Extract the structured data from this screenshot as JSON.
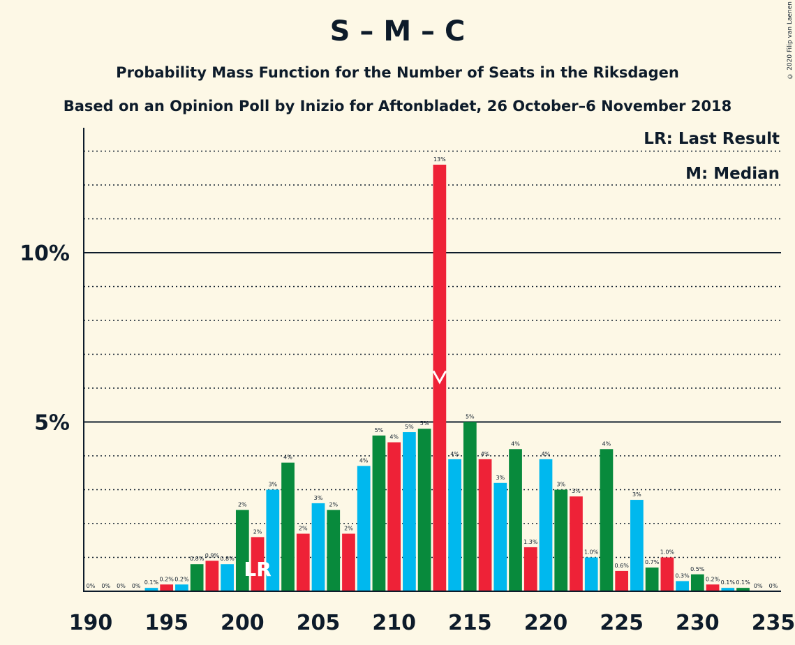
{
  "title": "S – M – C",
  "subtitle1": "Probability Mass Function for the Number of Seats in the Riksdagen",
  "subtitle2": "Based on an Opinion Poll by Inizio for Aftonbladet, 26 October–6 November 2018",
  "legend": {
    "lr": "LR: Last Result",
    "m": "M: Median"
  },
  "copyright": "© 2020 Filip van Laenen",
  "markers": {
    "last_result_label": "LR",
    "last_result_seat": 201,
    "median_seat": 213
  },
  "colors": {
    "green": "#088a3c",
    "red": "#ee2237",
    "blue": "#00b8ee",
    "background": "#fdf8e6",
    "text": "#0d1b2a"
  },
  "chart_data": {
    "type": "bar",
    "xlim": [
      190,
      235
    ],
    "ylim": [
      0,
      13.7
    ],
    "x_ticks": [
      "190",
      "195",
      "200",
      "205",
      "210",
      "215",
      "220",
      "225",
      "230",
      "235"
    ],
    "y_ticks": [
      {
        "value": 5,
        "label": "5%"
      },
      {
        "value": 10,
        "label": "10%"
      }
    ],
    "gridlines": "dotted every 1%, solid at 5% and 10%",
    "bars": [
      {
        "seat": 190,
        "value": 0,
        "label": "0%",
        "color": "green"
      },
      {
        "seat": 191,
        "value": 0,
        "label": "0%",
        "color": "red"
      },
      {
        "seat": 192,
        "value": 0,
        "label": "0%",
        "color": "blue"
      },
      {
        "seat": 193,
        "value": 0,
        "label": "0%",
        "color": "green"
      },
      {
        "seat": 194,
        "value": 0.1,
        "label": "0.1%",
        "color": "blue"
      },
      {
        "seat": 195,
        "value": 0.2,
        "label": "0.2%",
        "color": "red"
      },
      {
        "seat": 196,
        "value": 0.2,
        "label": "0.2%",
        "color": "blue"
      },
      {
        "seat": 197,
        "value": 0.8,
        "label": "0.8%",
        "color": "green"
      },
      {
        "seat": 198,
        "value": 0.9,
        "label": "0.9%",
        "color": "red"
      },
      {
        "seat": 199,
        "value": 0.8,
        "label": "0.8%",
        "color": "blue"
      },
      {
        "seat": 200,
        "value": 2.4,
        "label": "2%",
        "color": "green"
      },
      {
        "seat": 201,
        "value": 1.6,
        "label": "2%",
        "color": "red"
      },
      {
        "seat": 202,
        "value": 3.0,
        "label": "3%",
        "color": "blue"
      },
      {
        "seat": 203,
        "value": 3.8,
        "label": "4%",
        "color": "green"
      },
      {
        "seat": 204,
        "value": 1.7,
        "label": "2%",
        "color": "red"
      },
      {
        "seat": 205,
        "value": 2.6,
        "label": "3%",
        "color": "blue"
      },
      {
        "seat": 206,
        "value": 2.4,
        "label": "2%",
        "color": "green"
      },
      {
        "seat": 207,
        "value": 1.7,
        "label": "2%",
        "color": "red"
      },
      {
        "seat": 208,
        "value": 3.7,
        "label": "4%",
        "color": "blue"
      },
      {
        "seat": 209,
        "value": 4.6,
        "label": "5%",
        "color": "green"
      },
      {
        "seat": 210,
        "value": 4.4,
        "label": "4%",
        "color": "red"
      },
      {
        "seat": 211,
        "value": 4.7,
        "label": "5%",
        "color": "blue"
      },
      {
        "seat": 212,
        "value": 4.8,
        "label": "5%",
        "color": "green"
      },
      {
        "seat": 213,
        "value": 12.6,
        "label": "13%",
        "color": "red"
      },
      {
        "seat": 214,
        "value": 3.9,
        "label": "4%",
        "color": "blue"
      },
      {
        "seat": 215,
        "value": 5.0,
        "label": "5%",
        "color": "green"
      },
      {
        "seat": 216,
        "value": 3.9,
        "label": "4%",
        "color": "red"
      },
      {
        "seat": 217,
        "value": 3.2,
        "label": "3%",
        "color": "blue"
      },
      {
        "seat": 218,
        "value": 4.2,
        "label": "4%",
        "color": "green"
      },
      {
        "seat": 219,
        "value": 1.3,
        "label": "1.3%",
        "color": "red"
      },
      {
        "seat": 220,
        "value": 3.9,
        "label": "4%",
        "color": "blue"
      },
      {
        "seat": 221,
        "value": 3.0,
        "label": "3%",
        "color": "green"
      },
      {
        "seat": 222,
        "value": 2.8,
        "label": "3%",
        "color": "red"
      },
      {
        "seat": 223,
        "value": 1.0,
        "label": "1.0%",
        "color": "blue"
      },
      {
        "seat": 224,
        "value": 4.2,
        "label": "4%",
        "color": "green"
      },
      {
        "seat": 225,
        "value": 0.6,
        "label": "0.6%",
        "color": "red"
      },
      {
        "seat": 226,
        "value": 2.7,
        "label": "3%",
        "color": "blue"
      },
      {
        "seat": 227,
        "value": 0.7,
        "label": "0.7%",
        "color": "green"
      },
      {
        "seat": 228,
        "value": 1.0,
        "label": "1.0%",
        "color": "red"
      },
      {
        "seat": 229,
        "value": 0.3,
        "label": "0.3%",
        "color": "blue"
      },
      {
        "seat": 230,
        "value": 0.5,
        "label": "0.5%",
        "color": "green"
      },
      {
        "seat": 231,
        "value": 0.2,
        "label": "0.2%",
        "color": "red"
      },
      {
        "seat": 232,
        "value": 0.1,
        "label": "0.1%",
        "color": "blue"
      },
      {
        "seat": 233,
        "value": 0.1,
        "label": "0.1%",
        "color": "green"
      },
      {
        "seat": 234,
        "value": 0,
        "label": "0%",
        "color": "red"
      },
      {
        "seat": 235,
        "value": 0,
        "label": "0%",
        "color": "blue"
      }
    ]
  }
}
